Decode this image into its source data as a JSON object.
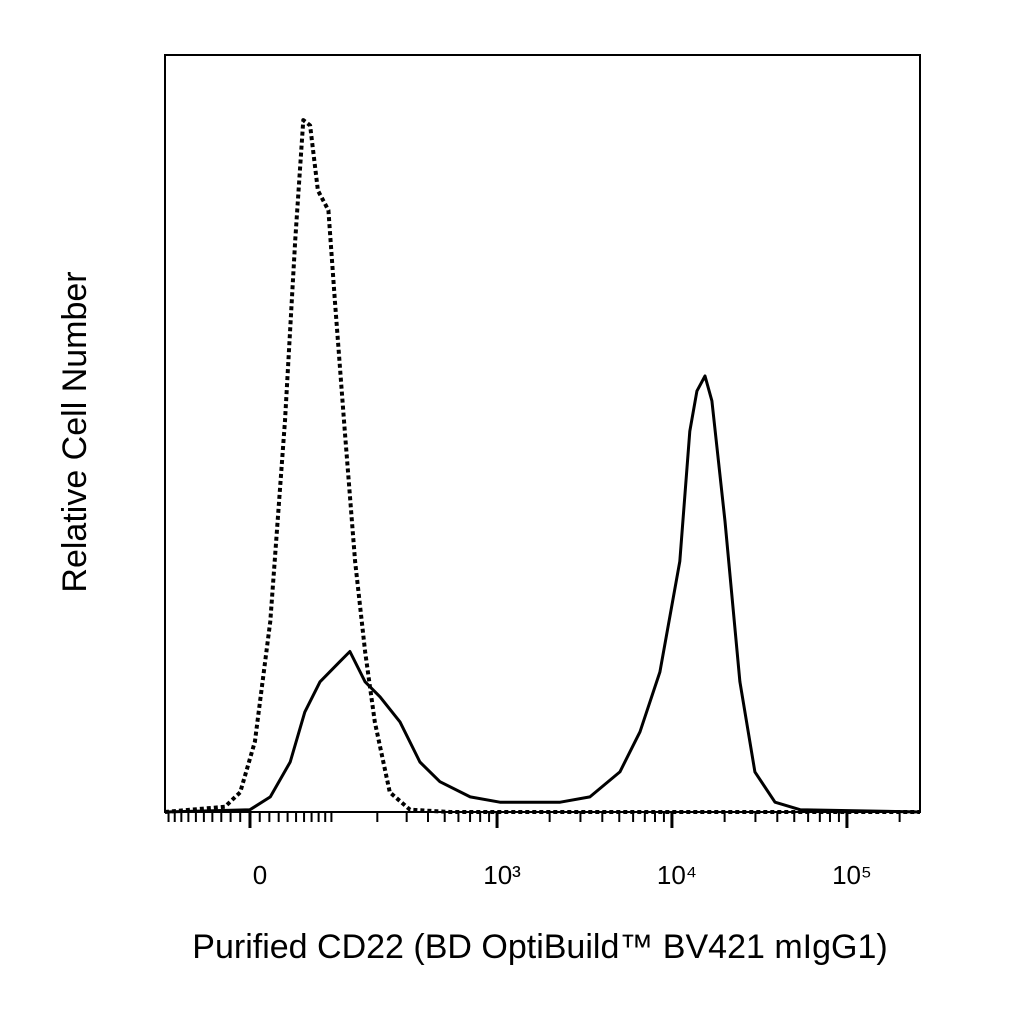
{
  "chart_data": {
    "type": "line",
    "xlabel": "Purified CD22 (BD OptiBuild™ BV421 mIgG1)",
    "ylabel": "Relative Cell Number",
    "xscale": "biexponential",
    "xlim": [
      -106,
      261500
    ],
    "ylim": [
      0,
      100
    ],
    "xticks": [
      0,
      {
        "value": 1000,
        "label": "10³"
      },
      {
        "value": 10000,
        "label": "10⁴"
      },
      {
        "value": 100000,
        "label": "10⁵"
      }
    ],
    "xminorticks": [
      -100,
      -90,
      -80,
      -70,
      -60,
      -50,
      -40,
      -30,
      -20,
      -10,
      10,
      20,
      30,
      40,
      50,
      60,
      70,
      80,
      90,
      100,
      200,
      300,
      400,
      500,
      600,
      700,
      800,
      900,
      2000,
      3000,
      4000,
      5000,
      6000,
      7000,
      8000,
      9000,
      20000,
      30000,
      40000,
      50000,
      60000,
      70000,
      80000,
      90000,
      200000
    ],
    "series": [
      {
        "color": "#000000",
        "style": "dotted",
        "x": [
          -106,
          -26,
          -10,
          5,
          21,
          37,
          49,
          59,
          68,
          79,
          95,
          106,
          124,
          145,
          168,
          193,
          238,
          314,
          537,
          261500
        ],
        "values": [
          0,
          0.7,
          2.6,
          9.3,
          25.2,
          51.7,
          75.5,
          91.4,
          90.7,
          82.1,
          79.5,
          67.5,
          50.3,
          33.1,
          21.2,
          11.9,
          2.6,
          0.3,
          0,
          0
        ]
      },
      {
        "color": "#000000",
        "style": "solid",
        "x": [
          -106,
          0,
          21,
          43,
          61,
          82,
          115,
          134,
          168,
          208,
          274,
          359,
          469,
          701,
          1039,
          2297,
          3399,
          5044,
          6573,
          8536,
          11097,
          12649,
          13890,
          15442,
          16917,
          20098,
          24444,
          29798,
          38800,
          54010,
          261500
        ],
        "values": [
          0,
          0.3,
          2.0,
          6.6,
          13.2,
          17.2,
          19.9,
          21.2,
          17.2,
          15.2,
          11.9,
          6.6,
          4.0,
          2.0,
          1.3,
          1.3,
          2.0,
          5.3,
          10.6,
          18.5,
          33.1,
          50.3,
          55.6,
          57.6,
          54.3,
          38.4,
          17.2,
          5.3,
          1.3,
          0.3,
          0
        ]
      }
    ]
  }
}
